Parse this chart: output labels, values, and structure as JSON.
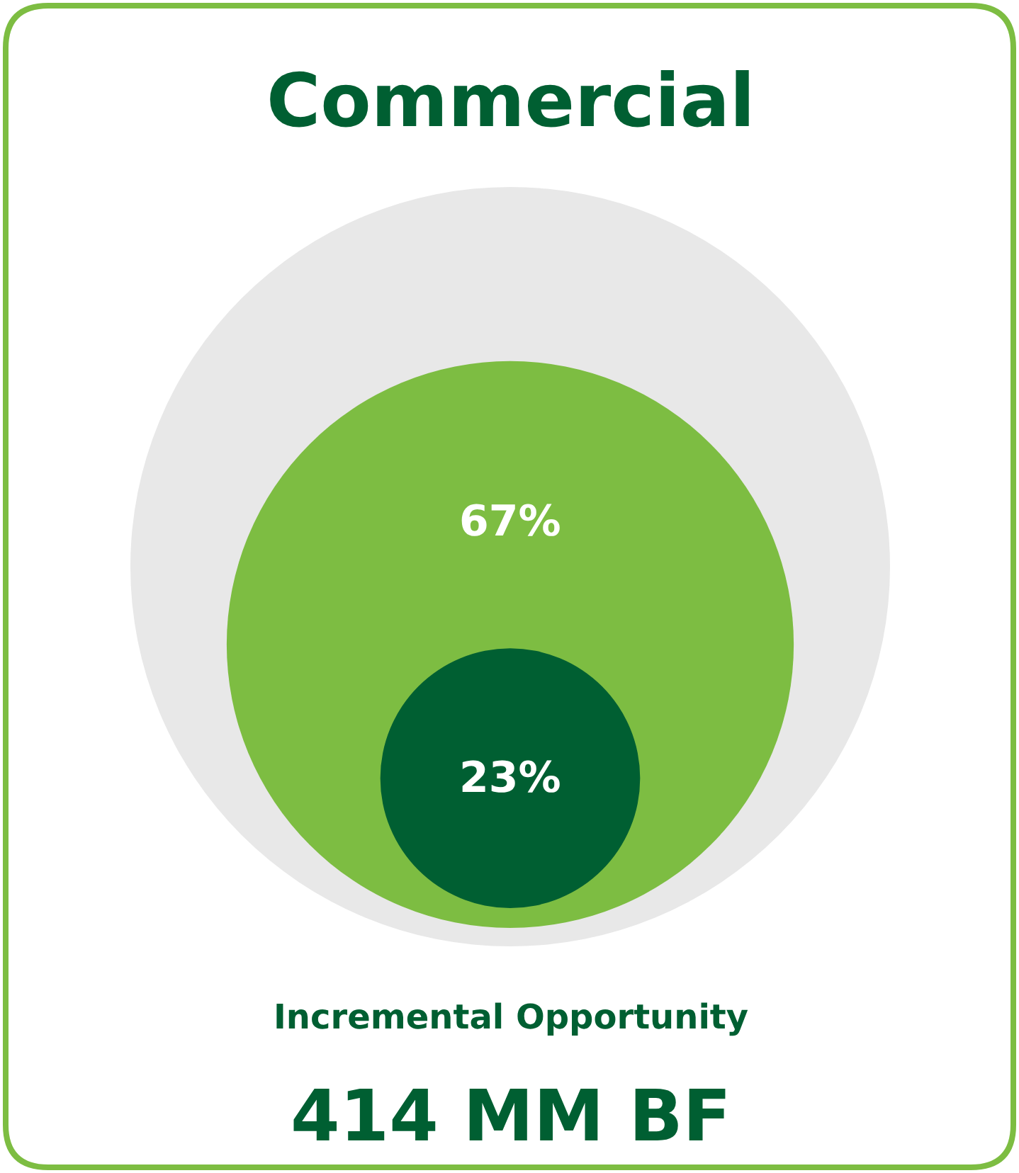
{
  "chart_data": {
    "type": "other",
    "title": "Commercial",
    "categories": [
      null,
      null,
      null
    ],
    "values": [
      null,
      67,
      23
    ],
    "value_labels": [
      null,
      "67%",
      "23%"
    ],
    "colors": [
      "#e8e8e8",
      "#7dbd42",
      "#005f32"
    ],
    "annotations": [
      "Incremental Opportunity",
      "414 MM BF"
    ]
  }
}
